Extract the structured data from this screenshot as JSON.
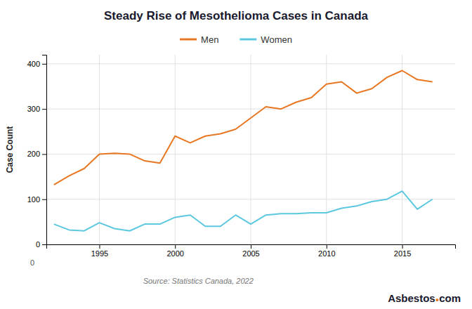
{
  "chart_data": {
    "type": "line",
    "title": "Steady Rise of Mesothelioma Cases in Canada",
    "y_label": "Case Count",
    "x": [
      1992,
      1993,
      1994,
      1995,
      1996,
      1997,
      1998,
      1999,
      2000,
      2001,
      2002,
      2003,
      2004,
      2005,
      2006,
      2007,
      2008,
      2009,
      2010,
      2011,
      2012,
      2013,
      2014,
      2015,
      2016,
      2017
    ],
    "series": [
      {
        "name": "Men",
        "color": "#E87722",
        "values": [
          132,
          152,
          168,
          200,
          202,
          200,
          185,
          180,
          240,
          225,
          240,
          245,
          255,
          280,
          305,
          300,
          315,
          325,
          355,
          360,
          335,
          345,
          370,
          385,
          365,
          360
        ]
      },
      {
        "name": "Women",
        "color": "#5BC8E0",
        "values": [
          45,
          32,
          30,
          48,
          35,
          30,
          45,
          45,
          60,
          65,
          40,
          40,
          65,
          45,
          65,
          68,
          68,
          70,
          70,
          80,
          85,
          95,
          100,
          118,
          78,
          100
        ]
      }
    ],
    "xlim": [
      1991.5,
      2018.5
    ],
    "xticks": [
      1995,
      2000,
      2005,
      2010,
      2015
    ],
    "ylim": [
      0,
      420
    ],
    "yticks": [
      0,
      100,
      200,
      300,
      400
    ],
    "grid": true,
    "annotations": [
      "0",
      "Source: Statistics Canada, 2022",
      "Asbestos",
      "●",
      "com"
    ]
  }
}
